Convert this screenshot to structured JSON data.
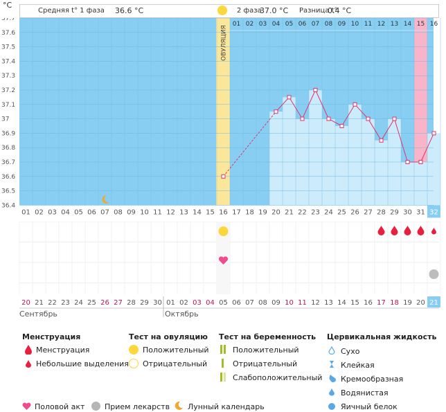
{
  "header": {
    "unit": "°C",
    "phase1_label": "Средняя t° 1 фаза",
    "phase1_value": "36.6 °C",
    "phase2_label": "2 фаза",
    "phase2_value": "37.0 °C",
    "diff_label": "Разница t°",
    "diff_value": "0.4 °C"
  },
  "ovulation_label": "ОВУЛЯЦИЯ",
  "chart_data": {
    "type": "line",
    "title": "",
    "ylim": [
      36.4,
      37.7
    ],
    "y_ticks": [
      "37.7",
      "37.6",
      "37.5",
      "37.4",
      "37.3",
      "37.2",
      "37.1",
      "37",
      "36.9",
      "36.8",
      "36.7",
      "36.6",
      "36.5",
      "36.4"
    ],
    "cycle_days": [
      "01",
      "02",
      "03",
      "04",
      "05",
      "06",
      "07",
      "08",
      "09",
      "10",
      "11",
      "12",
      "13",
      "14",
      "15",
      "16",
      "17",
      "18",
      "19",
      "20",
      "21",
      "22",
      "23",
      "24",
      "25",
      "26",
      "27",
      "28",
      "29",
      "30",
      "31",
      "32"
    ],
    "phase2_days": [
      "01",
      "02",
      "03",
      "04",
      "05",
      "06",
      "07",
      "08",
      "09",
      "10",
      "11",
      "12",
      "13",
      "14",
      "15",
      "16"
    ],
    "series": [
      {
        "values": [
          {
            "x": "16",
            "y": 36.6
          },
          {
            "x": "20",
            "y": 37.05
          },
          {
            "x": "21",
            "y": 37.15
          },
          {
            "x": "22",
            "y": 37.0
          },
          {
            "x": "23",
            "y": 37.2
          },
          {
            "x": "24",
            "y": 37.0
          },
          {
            "x": "25",
            "y": 36.95
          },
          {
            "x": "26",
            "y": 37.1
          },
          {
            "x": "27",
            "y": 37.0
          },
          {
            "x": "28",
            "y": 36.85
          },
          {
            "x": "29",
            "y": 37.0
          },
          {
            "x": "30",
            "y": 36.7
          },
          {
            "x": "31",
            "y": 36.7
          },
          {
            "x": "32",
            "y": 36.9
          }
        ]
      }
    ],
    "menstruation_days": [
      "28",
      "29",
      "30",
      "31"
    ],
    "light_discharge_days": [
      "32"
    ],
    "ovulation_day": "16",
    "highlight_day": "31"
  },
  "dates": [
    "20",
    "21",
    "22",
    "23",
    "24",
    "25",
    "26",
    "27",
    "28",
    "29",
    "30",
    "01",
    "02",
    "03",
    "04",
    "05",
    "06",
    "07",
    "08",
    "09",
    "10",
    "11",
    "12",
    "13",
    "14",
    "15",
    "16",
    "17",
    "18",
    "19",
    "20",
    "21"
  ],
  "weekend_dates": [
    0,
    6,
    7,
    13,
    14,
    20,
    21,
    27,
    28
  ],
  "month1": "Сентябрь",
  "month2": "Октябрь",
  "legend": {
    "menstr_title": "Менструация",
    "menstr_item": "Менструация",
    "menstr_small": "Небольшие выделения",
    "ov_title": "Тест на овуляцию",
    "ov_pos": "Положительный",
    "ov_neg": "Отрицательный",
    "preg_title": "Тест на беременность",
    "preg_pos": "Положительный",
    "preg_neg": "Отрицательный",
    "preg_weak": "Слабоположительный",
    "cerv_title": "Цервикальная жидкость",
    "cerv_1": "Сухо",
    "cerv_2": "Клейкая",
    "cerv_3": "Кремообразная",
    "cerv_4": "Водянистая",
    "cerv_5": "Яичный белок",
    "sex": "Половой акт",
    "meds": "Прием лекарств",
    "moon": "Лунный календарь"
  },
  "colors": {
    "bg": "#87cef2",
    "ovul": "#fbe79a",
    "bar": "#ccebfb",
    "pink": "#f8b4c8",
    "line": "#e0336e",
    "red": "#e81f3f"
  }
}
